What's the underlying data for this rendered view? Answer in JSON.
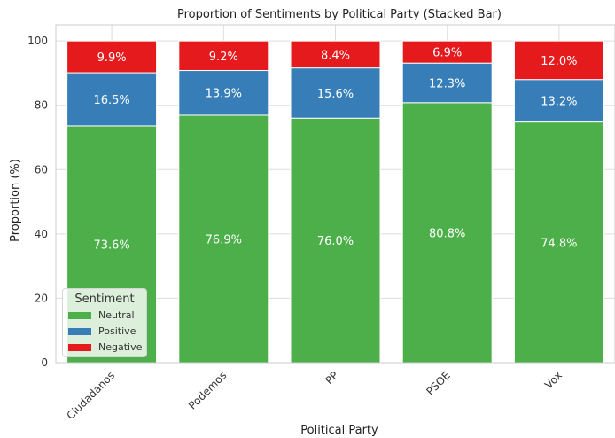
{
  "chart_data": {
    "type": "bar",
    "stacked": true,
    "title": "Proportion of Sentiments by Political Party (Stacked Bar)",
    "xlabel": "Political Party",
    "ylabel": "Proportion (%)",
    "ylim": [
      0,
      105
    ],
    "yticks": [
      0,
      20,
      40,
      60,
      80,
      100
    ],
    "grid": true,
    "legend_placement": "lower-left",
    "legend_title": "Sentiment",
    "categories": [
      "Ciudadanos",
      "Podemos",
      "PP",
      "PSOE",
      "Vox"
    ],
    "series": [
      {
        "name": "Neutral",
        "color": "#4daf4a",
        "values": [
          73.6,
          76.9,
          76.0,
          80.8,
          74.8
        ],
        "labels": [
          "73.6%",
          "76.9%",
          "76.0%",
          "80.8%",
          "74.8%"
        ]
      },
      {
        "name": "Positive",
        "color": "#377eb8",
        "values": [
          16.5,
          13.9,
          15.6,
          12.3,
          13.2
        ],
        "labels": [
          "16.5%",
          "13.9%",
          "15.6%",
          "12.3%",
          "13.2%"
        ]
      },
      {
        "name": "Negative",
        "color": "#e41a1c",
        "values": [
          9.9,
          9.2,
          8.4,
          6.9,
          12.0
        ],
        "labels": [
          "9.9%",
          "9.2%",
          "8.4%",
          "6.9%",
          "12.0%"
        ]
      }
    ]
  }
}
